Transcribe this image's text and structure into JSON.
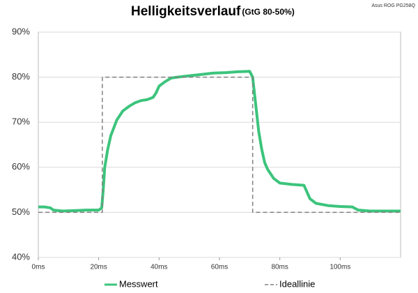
{
  "chart_data": {
    "type": "line",
    "title": "Helligkeitsverlauf",
    "subtitle": "(GtG 80-50%)",
    "annotation": "Asus ROG PG258Q",
    "xlim": [
      0,
      120
    ],
    "xticks": [
      {
        "value": 0,
        "label": "0ms"
      },
      {
        "value": 20,
        "label": "20ms"
      },
      {
        "value": 40,
        "label": "40ms"
      },
      {
        "value": 60,
        "label": "60ms"
      },
      {
        "value": 80,
        "label": "80ms"
      },
      {
        "value": 100,
        "label": "100ms"
      }
    ],
    "ylim": [
      40,
      90
    ],
    "yticks": [
      {
        "value": 40,
        "label": "40%"
      },
      {
        "value": 50,
        "label": "50%"
      },
      {
        "value": 60,
        "label": "60%"
      },
      {
        "value": 70,
        "label": "70%"
      },
      {
        "value": 80,
        "label": "80%"
      },
      {
        "value": 90,
        "label": "90%"
      }
    ],
    "grid": true,
    "series": [
      {
        "name": "Messwert",
        "color": "#3cc47c",
        "dash": false,
        "x": [
          0,
          2,
          4,
          5,
          8,
          12,
          16,
          20,
          21,
          21.5,
          22,
          23,
          24,
          26,
          28,
          30,
          32,
          34,
          36,
          38,
          39,
          40,
          42,
          44,
          46,
          50,
          54,
          58,
          62,
          66,
          70,
          71,
          72,
          73,
          74,
          75,
          76,
          78,
          80,
          84,
          88,
          89,
          90,
          92,
          96,
          100,
          104,
          106,
          110,
          116,
          120
        ],
        "values": [
          51.2,
          51.2,
          51,
          50.5,
          50.3,
          50.4,
          50.5,
          50.5,
          51,
          55,
          60,
          64,
          67,
          70.5,
          72.5,
          73.5,
          74.3,
          74.8,
          75,
          75.5,
          76.5,
          78,
          79,
          79.8,
          80,
          80.3,
          80.6,
          80.9,
          81,
          81.2,
          81.3,
          80,
          74,
          68,
          64,
          61,
          59.5,
          57.5,
          56.5,
          56.2,
          56,
          54.5,
          53,
          52,
          51.5,
          51.3,
          51.2,
          50.5,
          50.3,
          50.3,
          50.3
        ]
      },
      {
        "name": "Ideallinie",
        "color": "#808080",
        "dash": true,
        "x": [
          0,
          21.2,
          21.2,
          71,
          71,
          120
        ],
        "values": [
          50,
          50,
          80,
          80,
          50,
          50
        ]
      }
    ]
  }
}
